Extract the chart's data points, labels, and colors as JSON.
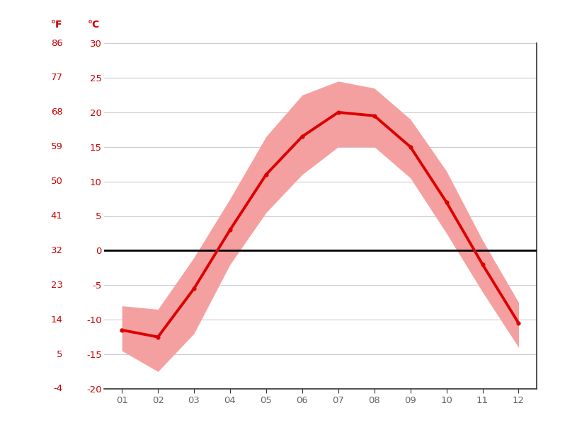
{
  "months": [
    1,
    2,
    3,
    4,
    5,
    6,
    7,
    8,
    9,
    10,
    11,
    12
  ],
  "month_labels": [
    "01",
    "02",
    "03",
    "04",
    "05",
    "06",
    "07",
    "08",
    "09",
    "10",
    "11",
    "12"
  ],
  "mean_temp_c": [
    -11.5,
    -12.5,
    -5.5,
    3.0,
    11.0,
    16.5,
    20.0,
    19.5,
    15.0,
    7.0,
    -2.0,
    -10.5
  ],
  "max_temp_c": [
    -8.0,
    -8.5,
    -1.0,
    7.5,
    16.5,
    22.5,
    24.5,
    23.5,
    19.0,
    11.5,
    1.5,
    -7.5
  ],
  "min_temp_c": [
    -14.5,
    -17.5,
    -12.0,
    -2.0,
    5.5,
    11.0,
    15.0,
    15.0,
    10.5,
    2.5,
    -6.0,
    -14.0
  ],
  "ylim_c": [
    -20,
    30
  ],
  "yticks_c": [
    -20,
    -15,
    -10,
    -5,
    0,
    5,
    10,
    15,
    20,
    25,
    30
  ],
  "yticks_f": [
    -4,
    5,
    14,
    23,
    32,
    41,
    50,
    59,
    68,
    77,
    86
  ],
  "line_color": "#dd0000",
  "band_color": "#f5a0a0",
  "zero_line_color": "#000000",
  "grid_color": "#cccccc",
  "label_color": "#cc0000",
  "background_color": "#ffffff",
  "spine_color": "#333333",
  "tick_label_color": "#666666",
  "right_spine_color": "#333333"
}
